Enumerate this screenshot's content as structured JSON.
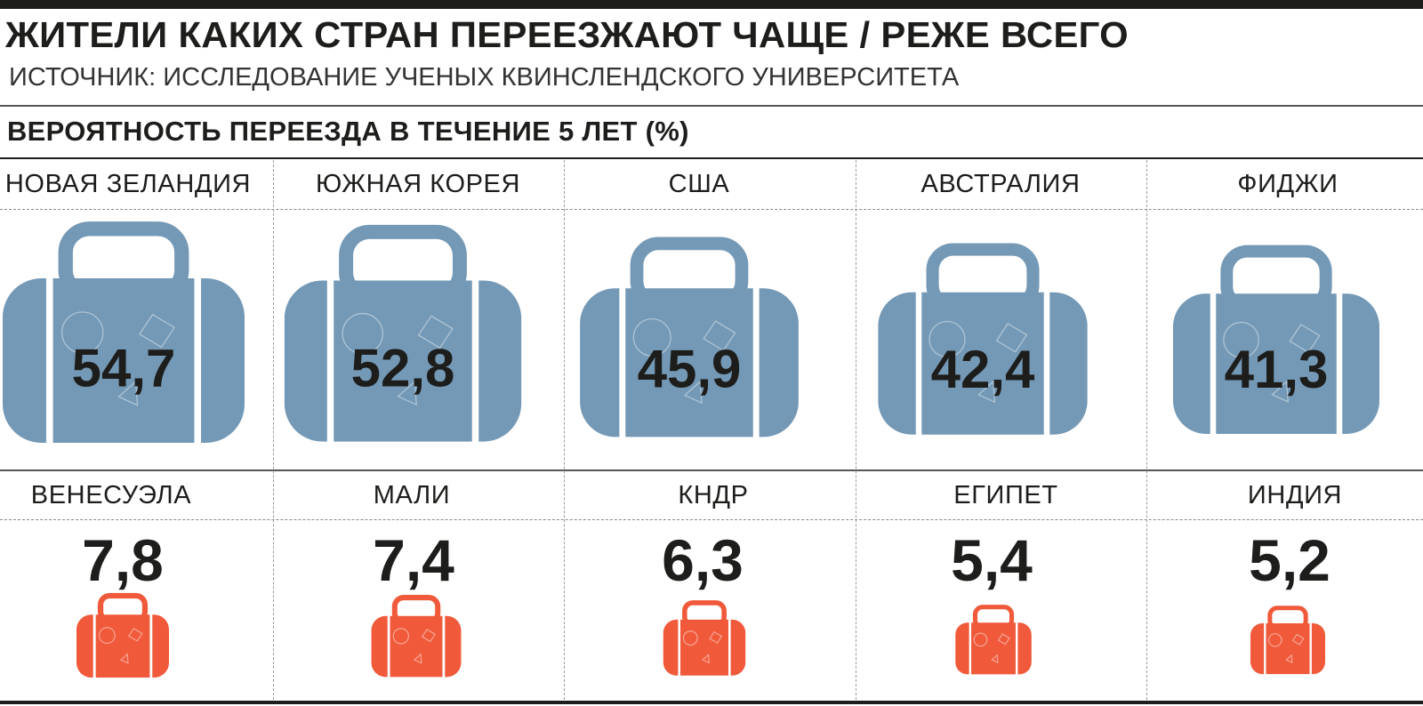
{
  "title": "ЖИТЕЛИ КАКИХ СТРАН ПЕРЕЕЗЖАЮТ ЧАЩЕ / РЕЖЕ ВСЕГО",
  "source": "ИСТОЧНИК: ИССЛЕДОВАНИЕ УЧЕНЫХ КВИНСЛЕНДСКОГО УНИВЕРСИТЕТА",
  "subtitle": "ВЕРОЯТНОСТЬ ПЕРЕЕЗДА В ТЕЧЕНИЕ 5 ЛЕТ (%)",
  "colors": {
    "high": "#7499b6",
    "low": "#f05a3b",
    "text": "#1d1d1b"
  },
  "icon": "suitcase-icon",
  "chart_data": [
    {
      "type": "bar",
      "group": "highest",
      "categories": [
        "НОВАЯ ЗЕЛАНДИЯ",
        "ЮЖНАЯ КОРЕЯ",
        "США",
        "АВСТРАЛИЯ",
        "ФИДЖИ"
      ],
      "values": [
        54.7,
        52.8,
        45.9,
        42.4,
        41.3
      ],
      "labels": [
        "54,7",
        "52,8",
        "45,9",
        "42,4",
        "41,3"
      ]
    },
    {
      "type": "bar",
      "group": "lowest",
      "categories": [
        "ВЕНЕСУЭЛА",
        "МАЛИ",
        "КНДР",
        "ЕГИПЕТ",
        "ИНДИЯ"
      ],
      "values": [
        7.8,
        7.4,
        6.3,
        5.4,
        5.2
      ],
      "labels": [
        "7,8",
        "7,4",
        "6,3",
        "5,4",
        "5,2"
      ]
    }
  ]
}
